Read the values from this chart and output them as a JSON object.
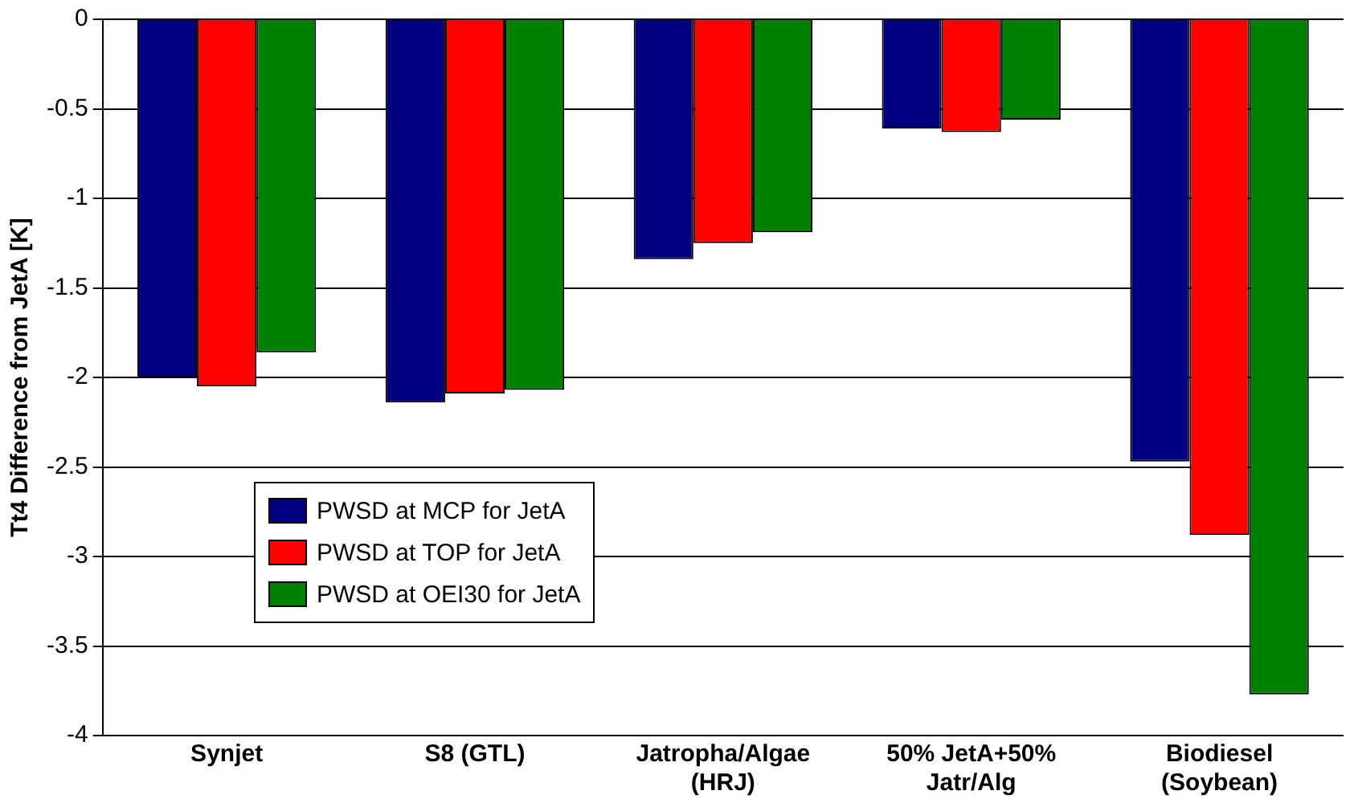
{
  "chart_data": {
    "type": "bar",
    "ylabel": "Tt4 Difference from JetA [K]",
    "categories": [
      "Synjet",
      "S8 (GTL)",
      "Jatropha/Algae (HRJ)",
      "50% JetA+50% Jatr/Alg",
      "Biodiesel (Soybean)"
    ],
    "series": [
      {
        "name": "PWSD at MCP for JetA",
        "color": "#000080",
        "values": [
          -2.0,
          -2.14,
          -1.34,
          -0.61,
          -2.47
        ]
      },
      {
        "name": "PWSD at TOP for JetA",
        "color": "#ff0000",
        "values": [
          -2.05,
          -2.09,
          -1.25,
          -0.63,
          -2.88
        ]
      },
      {
        "name": "PWSD at OEI30 for JetA",
        "color": "#008000",
        "values": [
          -1.86,
          -2.07,
          -1.19,
          -0.56,
          -3.77
        ]
      }
    ],
    "ylim": [
      -4,
      0
    ],
    "yticks": [
      -4,
      -3.5,
      -3,
      -2.5,
      -2,
      -1.5,
      -1,
      -0.5,
      0
    ],
    "grid": "y",
    "legend": "bottom left"
  }
}
